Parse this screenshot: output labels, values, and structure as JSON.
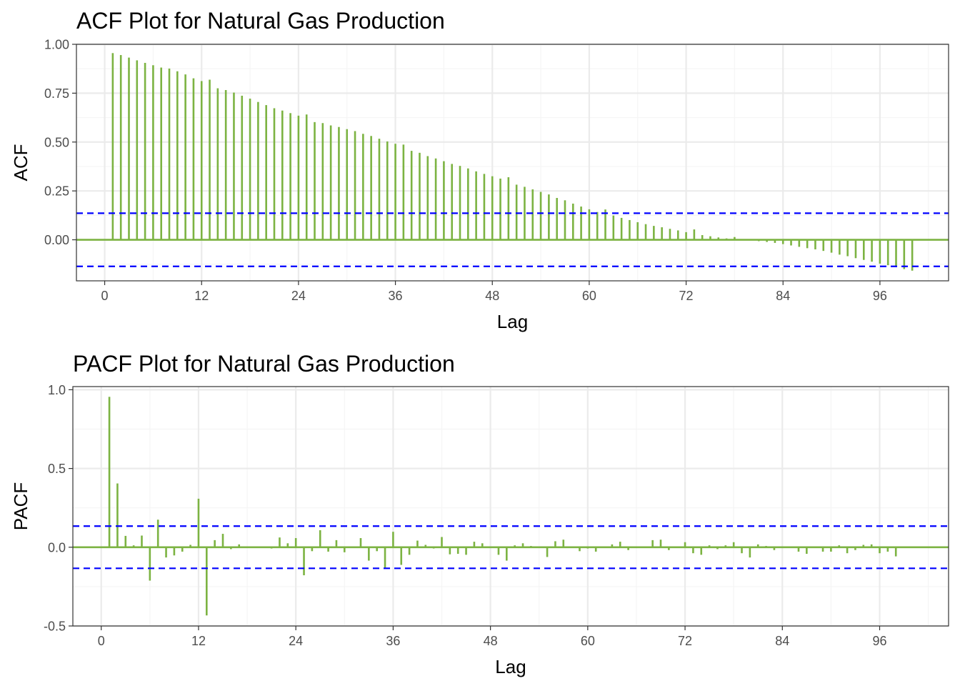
{
  "colors": {
    "bar": "#7cb342",
    "zero_line": "#7cb342",
    "ci_line": "#0000ff",
    "grid_major": "#ebebeb",
    "grid_minor": "#f5f5f5",
    "panel_border": "#333333",
    "background": "#ffffff"
  },
  "chart_data": [
    {
      "type": "bar",
      "title": "ACF Plot for Natural Gas Production",
      "xlabel": "Lag",
      "ylabel": "ACF",
      "xlim": [
        -3.5,
        104.5
      ],
      "ylim": [
        -0.21,
        1.0
      ],
      "x_ticks": [
        0,
        12,
        24,
        36,
        48,
        60,
        72,
        84,
        96
      ],
      "x_tick_labels": [
        "0",
        "12",
        "24",
        "36",
        "48",
        "60",
        "72",
        "84",
        "96"
      ],
      "y_ticks": [
        0.0,
        0.25,
        0.5,
        0.75,
        1.0
      ],
      "y_tick_labels": [
        "0.00",
        "0.25",
        "0.50",
        "0.75",
        "1.00"
      ],
      "ci": 0.136,
      "grid": true,
      "lags": [
        1,
        2,
        3,
        4,
        5,
        6,
        7,
        8,
        9,
        10,
        11,
        12,
        13,
        14,
        15,
        16,
        17,
        18,
        19,
        20,
        21,
        22,
        23,
        24,
        25,
        26,
        27,
        28,
        29,
        30,
        31,
        32,
        33,
        34,
        35,
        36,
        37,
        38,
        39,
        40,
        41,
        42,
        43,
        44,
        45,
        46,
        47,
        48,
        49,
        50,
        51,
        52,
        53,
        54,
        55,
        56,
        57,
        58,
        59,
        60,
        61,
        62,
        63,
        64,
        65,
        66,
        67,
        68,
        69,
        70,
        71,
        72,
        73,
        74,
        75,
        76,
        77,
        78,
        79,
        80,
        81,
        82,
        83,
        84,
        85,
        86,
        87,
        88,
        89,
        90,
        91,
        92,
        93,
        94,
        95,
        96,
        97,
        98,
        99,
        100
      ],
      "values": [
        0.955,
        0.945,
        0.932,
        0.918,
        0.905,
        0.893,
        0.881,
        0.876,
        0.862,
        0.846,
        0.826,
        0.812,
        0.819,
        0.775,
        0.766,
        0.753,
        0.737,
        0.722,
        0.705,
        0.689,
        0.673,
        0.661,
        0.648,
        0.635,
        0.641,
        0.602,
        0.597,
        0.585,
        0.577,
        0.566,
        0.556,
        0.542,
        0.531,
        0.517,
        0.503,
        0.491,
        0.487,
        0.455,
        0.445,
        0.428,
        0.416,
        0.402,
        0.388,
        0.378,
        0.365,
        0.35,
        0.337,
        0.325,
        0.313,
        0.32,
        0.282,
        0.271,
        0.258,
        0.245,
        0.232,
        0.214,
        0.202,
        0.185,
        0.17,
        0.156,
        0.142,
        0.155,
        0.124,
        0.112,
        0.101,
        0.09,
        0.08,
        0.071,
        0.064,
        0.056,
        0.048,
        0.039,
        0.053,
        0.024,
        0.018,
        0.012,
        0.007,
        0.014,
        -0.001,
        -0.003,
        -0.007,
        -0.011,
        -0.016,
        -0.022,
        -0.029,
        -0.036,
        -0.043,
        -0.049,
        -0.057,
        -0.066,
        -0.076,
        -0.084,
        -0.094,
        -0.103,
        -0.112,
        -0.122,
        -0.13,
        -0.14,
        -0.15,
        -0.158
      ]
    },
    {
      "type": "bar",
      "title": "PACF Plot for Natural Gas Production",
      "xlabel": "Lag",
      "ylabel": "PACF",
      "xlim": [
        -3.5,
        104.5
      ],
      "ylim": [
        -0.5,
        1.02
      ],
      "x_ticks": [
        0,
        12,
        24,
        36,
        48,
        60,
        72,
        84,
        96
      ],
      "x_tick_labels": [
        "0",
        "12",
        "24",
        "36",
        "48",
        "60",
        "72",
        "84",
        "96"
      ],
      "y_ticks": [
        -0.5,
        0.0,
        0.5,
        1.0
      ],
      "y_tick_labels": [
        "-0.5",
        "0.0",
        "0.5",
        "1.0"
      ],
      "ci": 0.134,
      "grid": true,
      "lags": [
        1,
        2,
        3,
        4,
        5,
        6,
        7,
        8,
        9,
        10,
        11,
        12,
        13,
        14,
        15,
        16,
        17,
        18,
        19,
        20,
        21,
        22,
        23,
        24,
        25,
        26,
        27,
        28,
        29,
        30,
        31,
        32,
        33,
        34,
        35,
        36,
        37,
        38,
        39,
        40,
        41,
        42,
        43,
        44,
        45,
        46,
        47,
        48,
        49,
        50,
        51,
        52,
        53,
        54,
        55,
        56,
        57,
        58,
        59,
        60,
        61,
        62,
        63,
        64,
        65,
        66,
        67,
        68,
        69,
        70,
        71,
        72,
        73,
        74,
        75,
        76,
        77,
        78,
        79,
        80,
        81,
        82,
        83,
        84,
        85,
        86,
        87,
        88,
        89,
        90,
        91,
        92,
        93,
        94,
        95,
        96,
        97,
        98,
        99
      ],
      "values": [
        0.955,
        0.405,
        0.072,
        0.012,
        0.074,
        -0.212,
        0.175,
        -0.065,
        -0.052,
        -0.028,
        0.015,
        0.308,
        -0.433,
        0.045,
        0.085,
        -0.012,
        0.018,
        0.005,
        0.003,
        -0.005,
        -0.008,
        0.062,
        0.025,
        0.058,
        -0.178,
        -0.025,
        0.108,
        -0.028,
        0.045,
        -0.032,
        -0.005,
        0.058,
        -0.085,
        -0.025,
        -0.132,
        0.098,
        -0.112,
        -0.048,
        0.042,
        0.015,
        -0.008,
        0.065,
        -0.045,
        -0.042,
        -0.048,
        0.035,
        0.025,
        0.005,
        -0.048,
        -0.085,
        0.012,
        0.025,
        0.008,
        0.005,
        -0.062,
        0.038,
        0.048,
        -0.005,
        -0.025,
        -0.008,
        -0.028,
        0.005,
        0.018,
        0.035,
        -0.018,
        0.005,
        0.005,
        0.045,
        0.048,
        -0.018,
        0.005,
        0.032,
        -0.038,
        -0.048,
        0.012,
        -0.012,
        0.012,
        0.032,
        -0.038,
        -0.065,
        0.018,
        0.008,
        -0.018,
        0.005,
        0.005,
        -0.028,
        -0.042,
        0.005,
        -0.028,
        -0.028,
        0.012,
        -0.038,
        -0.018,
        0.015,
        0.018,
        -0.038,
        -0.028,
        -0.058,
        0.005
      ]
    }
  ]
}
